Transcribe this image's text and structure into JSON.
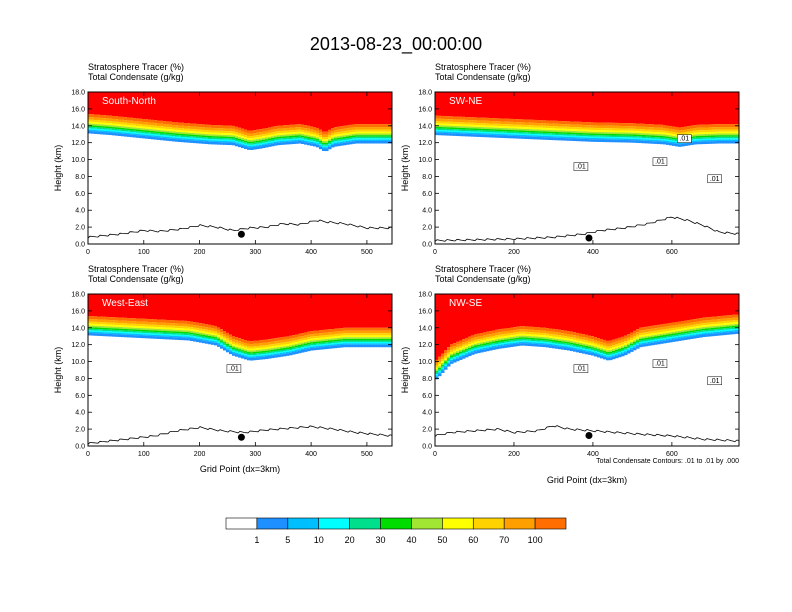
{
  "chart_data": {
    "type": "heatmap",
    "title": "2013-08-23_00:00:00",
    "panels": [
      {
        "name": "South-North",
        "header_lines": [
          "Stratosphere Tracer   (%)",
          "Total Condensate   (g/kg)"
        ],
        "xlabel": "",
        "ylabel": "Height (km)",
        "xlim": [
          0,
          545
        ],
        "ylim": [
          0,
          18
        ],
        "xticks": [
          0,
          100,
          200,
          300,
          400,
          500
        ],
        "xtick_labels": [
          "0",
          "100",
          "200",
          "300",
          "400",
          "500"
        ],
        "yticks": [
          0,
          2,
          4,
          6,
          8,
          10,
          12,
          14,
          16,
          18
        ],
        "ytick_labels": [
          "0.0",
          "2.0",
          "4.0",
          "6.0",
          "8.0",
          "10.0",
          "12.0",
          "14.0",
          "16.0",
          "18.0"
        ],
        "tropopause_km": [
          [
            0,
            14.4
          ],
          [
            40,
            14.2
          ],
          [
            100,
            13.8
          ],
          [
            160,
            13.4
          ],
          [
            220,
            13.1
          ],
          [
            260,
            13.0
          ],
          [
            290,
            12.4
          ],
          [
            310,
            12.6
          ],
          [
            340,
            13.0
          ],
          [
            380,
            13.2
          ],
          [
            410,
            12.8
          ],
          [
            425,
            12.2
          ],
          [
            440,
            12.8
          ],
          [
            480,
            13.2
          ],
          [
            545,
            13.2
          ]
        ],
        "terrain_km": [
          [
            0,
            0.8
          ],
          [
            30,
            1.0
          ],
          [
            60,
            1.2
          ],
          [
            100,
            1.6
          ],
          [
            130,
            1.5
          ],
          [
            170,
            1.8
          ],
          [
            200,
            2.2
          ],
          [
            230,
            2.0
          ],
          [
            260,
            1.6
          ],
          [
            290,
            1.9
          ],
          [
            320,
            2.0
          ],
          [
            350,
            2.4
          ],
          [
            380,
            2.3
          ],
          [
            410,
            2.8
          ],
          [
            430,
            2.6
          ],
          [
            460,
            2.4
          ],
          [
            500,
            1.9
          ],
          [
            545,
            1.9
          ]
        ],
        "marker_x": 275,
        "condensate_contour_labels": []
      },
      {
        "name": "SW-NE",
        "header_lines": [
          "Stratosphere Tracer   (%)",
          "Total Condensate   (g/kg)"
        ],
        "xlabel": "",
        "ylabel": "Height (km)",
        "xlim": [
          0,
          770
        ],
        "ylim": [
          0,
          18
        ],
        "xticks": [
          0,
          200,
          400,
          600
        ],
        "xtick_labels": [
          "0",
          "200",
          "400",
          "600"
        ],
        "yticks": [
          0,
          2,
          4,
          6,
          8,
          10,
          12,
          14,
          16,
          18
        ],
        "ytick_labels": [
          "0.0",
          "2.0",
          "4.0",
          "6.0",
          "8.0",
          "10.0",
          "12.0",
          "14.0",
          "16.0",
          "18.0"
        ],
        "tropopause_km": [
          [
            0,
            14.2
          ],
          [
            100,
            14.0
          ],
          [
            200,
            13.8
          ],
          [
            300,
            13.6
          ],
          [
            400,
            13.4
          ],
          [
            500,
            13.3
          ],
          [
            580,
            13.1
          ],
          [
            620,
            12.8
          ],
          [
            660,
            13.1
          ],
          [
            720,
            13.2
          ],
          [
            770,
            13.2
          ]
        ],
        "terrain_km": [
          [
            0,
            0.4
          ],
          [
            100,
            0.5
          ],
          [
            200,
            0.6
          ],
          [
            300,
            0.8
          ],
          [
            380,
            1.2
          ],
          [
            420,
            1.6
          ],
          [
            480,
            1.9
          ],
          [
            540,
            2.4
          ],
          [
            600,
            3.2
          ],
          [
            640,
            2.8
          ],
          [
            680,
            2.2
          ],
          [
            720,
            1.4
          ],
          [
            770,
            1.2
          ]
        ],
        "marker_x": 390,
        "condensate_contour_labels": [
          ".01",
          ".01",
          ".01",
          ".01"
        ]
      },
      {
        "name": "West-East",
        "header_lines": [
          "Stratosphere Tracer   (%)",
          "Total Condensate   (g/kg)"
        ],
        "xlabel": "Grid Point (dx=3km)",
        "ylabel": "Height (km)",
        "xlim": [
          0,
          545
        ],
        "ylim": [
          0,
          18
        ],
        "xticks": [
          0,
          100,
          200,
          300,
          400,
          500
        ],
        "xtick_labels": [
          "0",
          "100",
          "200",
          "300",
          "400",
          "500"
        ],
        "yticks": [
          0,
          2,
          4,
          6,
          8,
          10,
          12,
          14,
          16,
          18
        ],
        "ytick_labels": [
          "0.0",
          "2.0",
          "4.0",
          "6.0",
          "8.0",
          "10.0",
          "12.0",
          "14.0",
          "16.0",
          "18.0"
        ],
        "tropopause_km": [
          [
            0,
            14.4
          ],
          [
            60,
            14.2
          ],
          [
            120,
            14.0
          ],
          [
            180,
            13.8
          ],
          [
            230,
            13.2
          ],
          [
            260,
            12.0
          ],
          [
            290,
            11.4
          ],
          [
            320,
            11.6
          ],
          [
            360,
            12.0
          ],
          [
            400,
            12.6
          ],
          [
            460,
            13.0
          ],
          [
            545,
            13.0
          ]
        ],
        "terrain_km": [
          [
            0,
            0.3
          ],
          [
            40,
            0.6
          ],
          [
            80,
            0.9
          ],
          [
            120,
            1.2
          ],
          [
            160,
            1.8
          ],
          [
            200,
            2.2
          ],
          [
            240,
            1.8
          ],
          [
            280,
            1.6
          ],
          [
            320,
            1.9
          ],
          [
            360,
            2.1
          ],
          [
            400,
            2.3
          ],
          [
            440,
            2.0
          ],
          [
            480,
            1.6
          ],
          [
            545,
            1.2
          ]
        ],
        "marker_x": 275,
        "condensate_contour_labels": [
          ".01"
        ]
      },
      {
        "name": "NW-SE",
        "header_lines": [
          "Stratosphere Tracer   (%)",
          "Total Condensate   (g/kg)"
        ],
        "xlabel": "Grid Point (dx=3km)",
        "ylabel": "Height (km)",
        "xlim": [
          0,
          770
        ],
        "ylim": [
          0,
          18
        ],
        "xticks": [
          0,
          200,
          400,
          600
        ],
        "xtick_labels": [
          "0",
          "200",
          "400",
          "600"
        ],
        "yticks": [
          0,
          2,
          4,
          6,
          8,
          10,
          12,
          14,
          16,
          18
        ],
        "ytick_labels": [
          "0.0",
          "2.0",
          "4.0",
          "6.0",
          "8.0",
          "10.0",
          "12.0",
          "14.0",
          "16.0",
          "18.0"
        ],
        "tropopause_km": [
          [
            0,
            9.0
          ],
          [
            40,
            11.0
          ],
          [
            100,
            12.2
          ],
          [
            160,
            12.8
          ],
          [
            220,
            13.2
          ],
          [
            280,
            13.0
          ],
          [
            340,
            12.6
          ],
          [
            400,
            12.0
          ],
          [
            440,
            11.4
          ],
          [
            480,
            12.0
          ],
          [
            520,
            13.0
          ],
          [
            600,
            13.6
          ],
          [
            680,
            14.2
          ],
          [
            770,
            14.6
          ]
        ],
        "terrain_km": [
          [
            0,
            1.2
          ],
          [
            40,
            1.6
          ],
          [
            100,
            1.8
          ],
          [
            160,
            2.0
          ],
          [
            200,
            1.6
          ],
          [
            260,
            1.8
          ],
          [
            300,
            2.4
          ],
          [
            340,
            2.0
          ],
          [
            400,
            1.8
          ],
          [
            460,
            1.6
          ],
          [
            520,
            1.4
          ],
          [
            600,
            1.2
          ],
          [
            680,
            0.8
          ],
          [
            770,
            0.6
          ]
        ],
        "marker_x": 390,
        "condensate_contour_labels": [
          ".01",
          ".01",
          ".01"
        ]
      }
    ],
    "contour_note": "Total Condensate Contours: .01 to .01 by .000",
    "colorbar": {
      "levels": [
        "1",
        "5",
        "10",
        "20",
        "30",
        "40",
        "50",
        "60",
        "70",
        "100"
      ],
      "colors": [
        "#ffffff",
        "#1e90ff",
        "#00bfff",
        "#00ffff",
        "#00e08c",
        "#00dc00",
        "#a0e632",
        "#ffff00",
        "#ffd200",
        "#ffa000",
        "#ff6e00",
        "#ff0000"
      ]
    }
  }
}
